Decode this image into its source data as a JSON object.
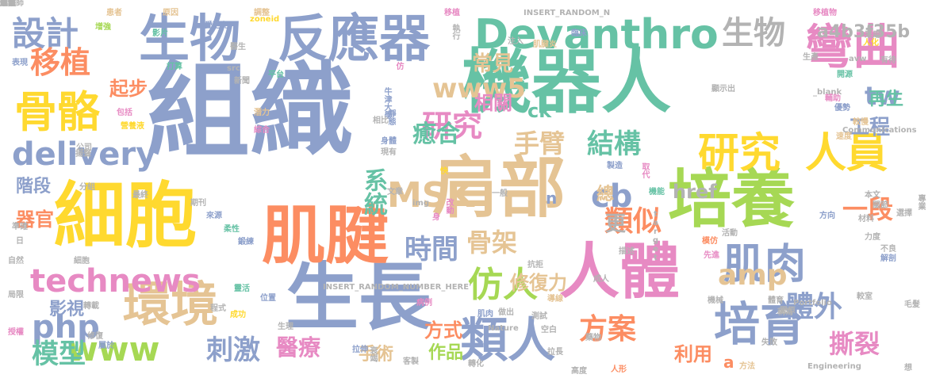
{
  "palette": {
    "blue": "#8da0cb",
    "green": "#66c2a5",
    "orange": "#fc8d62",
    "pink": "#e78ac3",
    "lime": "#a6d854",
    "yellow": "#ffd92f",
    "tan": "#e5c494",
    "gray": "#b3b3b3"
  },
  "words": [
    {
      "text": "組織",
      "color": "blue"
    },
    {
      "text": "機器人",
      "color": "green"
    },
    {
      "text": "肩部",
      "color": "tan"
    },
    {
      "text": "人體",
      "color": "pink"
    },
    {
      "text": "細胞",
      "color": "yellow"
    },
    {
      "text": "培養",
      "color": "lime"
    },
    {
      "text": "生長",
      "color": "blue"
    },
    {
      "text": "肌腱",
      "color": "orange"
    },
    {
      "text": "生物",
      "color": "blue"
    },
    {
      "text": "反應器",
      "color": "blue"
    },
    {
      "text": "Devanthro",
      "color": "green"
    },
    {
      "text": "研究",
      "color": "yellow"
    },
    {
      "text": "人員",
      "color": "yellow"
    },
    {
      "text": "環境",
      "color": "tan"
    },
    {
      "text": "培育",
      "color": "blue"
    },
    {
      "text": "肌肉",
      "color": "blue"
    },
    {
      "text": "骨骼",
      "color": "yellow"
    },
    {
      "text": "technews",
      "color": "pink"
    },
    {
      "text": "delivery",
      "color": "blue"
    },
    {
      "text": "類人",
      "color": "blue"
    },
    {
      "text": "彎曲",
      "color": "pink"
    },
    {
      "text": "仿人",
      "color": "lime"
    },
    {
      "text": "設計",
      "color": "blue"
    },
    {
      "text": "生物",
      "color": "gray"
    },
    {
      "text": "www5",
      "color": "tan"
    },
    {
      "text": "研究",
      "color": "pink"
    },
    {
      "text": "結構",
      "color": "green"
    },
    {
      "text": "MSK",
      "color": "tan"
    },
    {
      "text": "amp",
      "color": "tan"
    },
    {
      "text": "移植",
      "color": "orange"
    },
    {
      "text": "a4b3f35b",
      "color": "gray"
    },
    {
      "text": "系統",
      "color": "green"
    },
    {
      "text": "手臂",
      "color": "tan"
    },
    {
      "text": "體外",
      "color": "blue"
    },
    {
      "text": "方案",
      "color": "orange"
    },
    {
      "text": "php",
      "color": "blue"
    },
    {
      "text": "www",
      "color": "lime"
    },
    {
      "text": "cb",
      "color": "blue"
    },
    {
      "text": "類似",
      "color": "orange"
    },
    {
      "text": "時間",
      "color": "blue"
    },
    {
      "text": "骨架",
      "color": "tan"
    },
    {
      "text": "模型",
      "color": "green"
    },
    {
      "text": "刺激",
      "color": "blue"
    },
    {
      "text": "撕裂",
      "color": "pink"
    },
    {
      "text": "一段",
      "color": "orange"
    },
    {
      "text": "tw",
      "color": "blue"
    },
    {
      "text": "癒合",
      "color": "green"
    },
    {
      "text": "工程",
      "color": "blue"
    },
    {
      "text": "常見",
      "color": "tan"
    },
    {
      "text": "href",
      "color": "gray"
    },
    {
      "text": "再生",
      "color": "green"
    },
    {
      "text": "相關",
      "color": "pink"
    },
    {
      "text": "ck",
      "color": "green"
    },
    {
      "text": "更",
      "color": "gray"
    },
    {
      "text": "修復力",
      "color": "tan"
    },
    {
      "text": "影視",
      "color": "blue"
    },
    {
      "text": "醫療",
      "color": "pink"
    },
    {
      "text": "方式",
      "color": "orange"
    },
    {
      "text": "作品",
      "color": "lime"
    },
    {
      "text": "手術",
      "color": "tan"
    },
    {
      "text": "利用",
      "color": "orange"
    },
    {
      "text": "器官",
      "color": "orange"
    },
    {
      "text": "階段",
      "color": "blue"
    },
    {
      "text": "起步",
      "color": "orange"
    },
    {
      "text": "總",
      "color": "tan"
    },
    {
      "text": "n",
      "color": "blue"
    },
    {
      "text": "a",
      "color": "orange"
    },
    {
      "text": "患者",
      "color": "tan"
    },
    {
      "text": "原因",
      "color": "tan"
    },
    {
      "text": "調整",
      "color": "tan"
    },
    {
      "text": "移植",
      "color": "pink"
    },
    {
      "text": "INSERT_RANDOM_N",
      "color": "gray"
    },
    {
      "text": "執行",
      "color": "gray"
    },
    {
      "text": "移植物",
      "color": "pink"
    },
    {
      "text": "增強",
      "color": "lime"
    },
    {
      "text": "影片",
      "color": "green"
    },
    {
      "text": "愛范兒",
      "color": "blue"
    },
    {
      "text": "zoneid",
      "color": "yellow"
    },
    {
      "text": "醫生",
      "color": "gray"
    },
    {
      "text": "臨床",
      "color": "blue"
    },
    {
      "text": "注入",
      "color": "gray"
    },
    {
      "text": "肌腱炎",
      "color": "tan"
    },
    {
      "text": "生產",
      "color": "gray"
    },
    {
      "text": "人化",
      "color": "yellow"
    },
    {
      "text": "表現",
      "color": "blue"
    },
    {
      "text": "打算",
      "color": "green"
    },
    {
      "text": "src",
      "color": "gray"
    },
    {
      "text": "新聞",
      "color": "gray"
    },
    {
      "text": "平台",
      "color": "green"
    },
    {
      "text": "仿",
      "color": "pink"
    },
    {
      "text": "avw",
      "color": "gray"
    },
    {
      "text": "開源",
      "color": "green"
    },
    {
      "text": "顯示出",
      "color": "gray"
    },
    {
      "text": "_blank",
      "color": "gray"
    },
    {
      "text": "輔助",
      "color": "pink"
    },
    {
      "text": "優勢",
      "color": "blue"
    },
    {
      "text": "牛津大學",
      "color": "blue"
    },
    {
      "text": "包括",
      "color": "pink"
    },
    {
      "text": "營養液",
      "color": "yellow"
    },
    {
      "text": "潛力",
      "color": "tan"
    },
    {
      "text": "綜合",
      "color": "pink"
    },
    {
      "text": "靜態",
      "color": "blue"
    },
    {
      "text": "身體",
      "color": "blue"
    },
    {
      "text": "現有",
      "color": "gray"
    },
    {
      "text": "公司",
      "color": "gray"
    },
    {
      "text": "Communications",
      "color": "gray"
    },
    {
      "text": "較慢",
      "color": "tan"
    },
    {
      "text": "速度",
      "color": "tan"
    },
    {
      "text": "製造",
      "color": "blue"
    },
    {
      "text": "取代",
      "color": "pink"
    },
    {
      "text": "快",
      "color": "yellow"
    },
    {
      "text": "機能",
      "color": "green"
    },
    {
      "text": "target",
      "color": "gray"
    },
    {
      "text": "身",
      "color": "pink"
    },
    {
      "text": "改動",
      "color": "pink"
    },
    {
      "text": "本文",
      "color": "gray"
    },
    {
      "text": "專業",
      "color": "gray"
    },
    {
      "text": "材料",
      "color": "gray"
    },
    {
      "text": "方向",
      "color": "blue"
    },
    {
      "text": "力度",
      "color": "gray"
    },
    {
      "text": "模仿",
      "color": "orange"
    },
    {
      "text": "先進",
      "color": "pink"
    },
    {
      "text": "解剖",
      "color": "blue"
    },
    {
      "text": "細胞",
      "color": "gray"
    },
    {
      "text": "成人",
      "color": "gray"
    },
    {
      "text": "INSERT_RANDOM_NUMBER_HERE'",
      "color": "gray"
    },
    {
      "text": "靈活",
      "color": "green"
    },
    {
      "text": "位置",
      "color": "blue"
    },
    {
      "text": "病例",
      "color": "pink"
    },
    {
      "text": "導線",
      "color": "tan"
    },
    {
      "text": "測試",
      "color": "gray"
    },
    {
      "text": "機械",
      "color": "gray"
    },
    {
      "text": "體育",
      "color": "gray"
    },
    {
      "text": "Portfolio",
      "color": "gray"
    },
    {
      "text": "膠原",
      "color": "gray"
    },
    {
      "text": "較室",
      "color": "gray"
    },
    {
      "text": "生理",
      "color": "gray"
    },
    {
      "text": "肌肉",
      "color": "blue"
    },
    {
      "text": "Nature",
      "color": "gray"
    },
    {
      "text": "空白",
      "color": "gray"
    },
    {
      "text": "藥物",
      "color": "gray"
    },
    {
      "text": "人形",
      "color": "orange"
    },
    {
      "text": "想",
      "color": "gray"
    },
    {
      "text": "Engineering",
      "color": "gray"
    },
    {
      "text": "方法",
      "color": "tan"
    },
    {
      "text": "授權",
      "color": "pink"
    },
    {
      "text": "屬於",
      "color": "blue"
    },
    {
      "text": "成功",
      "color": "yellow"
    },
    {
      "text": "拉伸",
      "color": "blue"
    },
    {
      "text": "衰竭",
      "color": "gray"
    },
    {
      "text": "客製",
      "color": "gray"
    },
    {
      "text": "高度",
      "color": "gray"
    },
    {
      "text": "揚聲",
      "color": "gray"
    },
    {
      "text": "相比",
      "color": "gray"
    },
    {
      "text": "鍛練",
      "color": "blue"
    },
    {
      "text": "抗拒",
      "color": "gray"
    },
    {
      "text": "一般",
      "color": "gray"
    },
    {
      "text": "不良",
      "color": "gray"
    },
    {
      "text": "描述",
      "color": "gray"
    },
    {
      "text": "活動",
      "color": "gray"
    },
    {
      "text": "程式",
      "color": "gray"
    },
    {
      "text": "轉化",
      "color": "gray"
    },
    {
      "text": "分組",
      "color": "gray"
    },
    {
      "text": "最終",
      "color": "gray"
    },
    {
      "text": "文章",
      "color": "gray"
    },
    {
      "text": "img",
      "color": "gray"
    },
    {
      "text": "期刊",
      "color": "gray"
    },
    {
      "text": "來源",
      "color": "blue"
    },
    {
      "text": "柔性",
      "color": "green"
    },
    {
      "text": "準確",
      "color": "gray"
    },
    {
      "text": "日",
      "color": "gray"
    },
    {
      "text": "自然",
      "color": "gray"
    },
    {
      "text": "局限",
      "color": "gray"
    },
    {
      "text": "轉載",
      "color": "gray"
    },
    {
      "text": "修復",
      "color": "gray"
    },
    {
      "text": "關節",
      "color": "gray"
    },
    {
      "text": "做出",
      "color": "gray"
    },
    {
      "text": "拉長",
      "color": "gray"
    },
    {
      "text": "失敗",
      "color": "gray"
    },
    {
      "text": "稱為",
      "color": "gray"
    },
    {
      "text": "選擇",
      "color": "gray"
    },
    {
      "text": "毛髮",
      "color": "gray"
    },
    {
      "text": "有待",
      "color": "gray"
    },
    {
      "text": "采用",
      "color": "gray"
    },
    {
      "text": "細節",
      "color": "gray"
    },
    {
      "text": "工程師",
      "color": "gray"
    },
    {
      "text": "環保",
      "color": "gray"
    },
    {
      "text": "人類",
      "color": "gray"
    },
    {
      "text": "形成",
      "color": "gray"
    },
    {
      "text": "重建",
      "color": "gray"
    },
    {
      "text": "解決",
      "color": "gray"
    }
  ]
}
